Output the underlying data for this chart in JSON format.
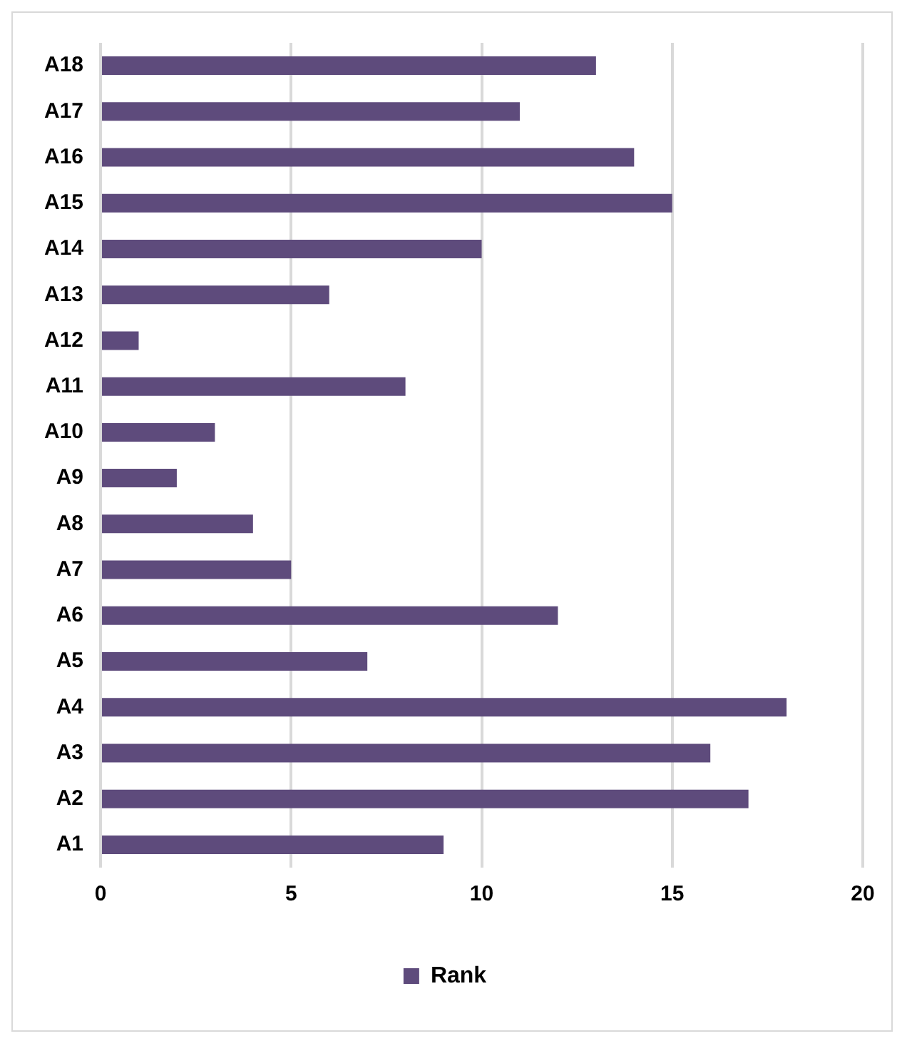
{
  "chart_data": {
    "type": "bar",
    "orientation": "horizontal",
    "categories": [
      "A18",
      "A17",
      "A16",
      "A15",
      "A14",
      "A13",
      "A12",
      "A11",
      "A10",
      "A9",
      "A8",
      "A7",
      "A6",
      "A5",
      "A4",
      "A3",
      "A2",
      "A1"
    ],
    "series": [
      {
        "name": "Rank",
        "color": "#5e4b7c",
        "values": [
          13,
          11,
          14,
          15,
          10,
          6,
          1,
          8,
          3,
          2,
          4,
          5,
          12,
          7,
          18,
          16,
          17,
          9
        ]
      }
    ],
    "xlim": [
      0,
      20
    ],
    "xticks": [
      0,
      5,
      10,
      15,
      20
    ],
    "grid": "x",
    "legend": "bottom"
  }
}
